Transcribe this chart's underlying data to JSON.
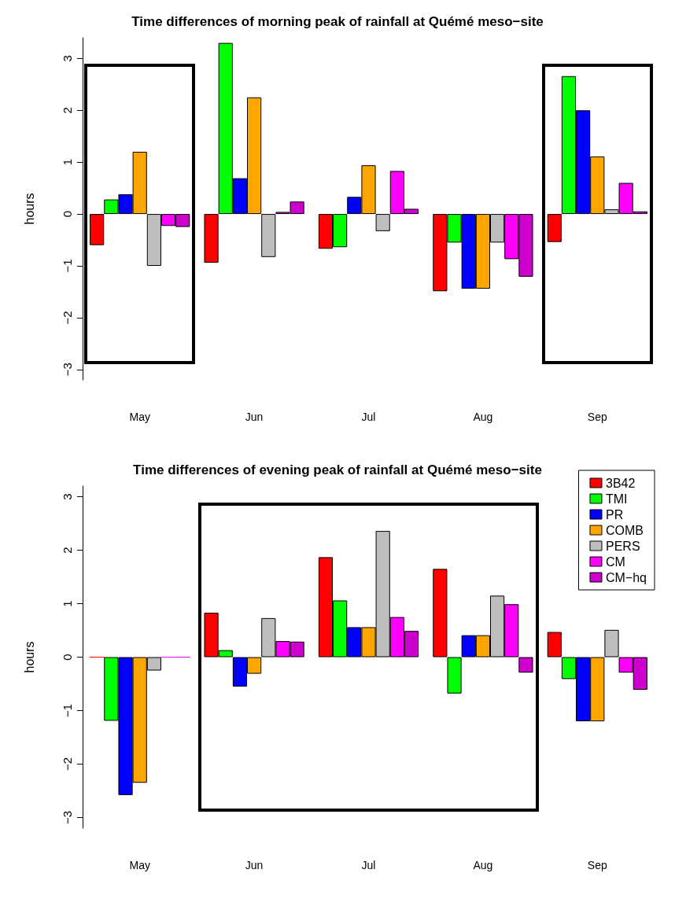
{
  "chart_data": [
    {
      "type": "bar",
      "title": "Time differences of morning peak of rainfall at Quémé meso−site",
      "ylabel": "hours",
      "categories": [
        "May",
        "Jun",
        "Jul",
        "Aug",
        "Sep"
      ],
      "ylim": [
        -3.2,
        3.4
      ],
      "yticks": [
        -3,
        -2,
        -1,
        0,
        1,
        2,
        3
      ],
      "legend": false,
      "series": [
        {
          "color": "#ff0000",
          "values": [
            -0.6,
            -0.94,
            -0.67,
            -1.49,
            -0.54
          ]
        },
        {
          "color": "#00ff00",
          "values": [
            0.28,
            3.3,
            -0.64,
            -0.55,
            2.66
          ]
        },
        {
          "color": "#0000ff",
          "values": [
            0.38,
            0.69,
            0.33,
            -1.44,
            2.0
          ]
        },
        {
          "color": "#ffa500",
          "values": [
            1.2,
            2.25,
            0.94,
            -1.44,
            1.11
          ]
        },
        {
          "color": "#bebebe",
          "values": [
            -1.0,
            -0.83,
            -0.33,
            -0.55,
            0.09
          ]
        },
        {
          "color": "#ff00ff",
          "values": [
            -0.23,
            0.04,
            0.83,
            -0.87,
            0.6
          ]
        },
        {
          "color": "#cd00cd",
          "values": [
            -0.25,
            0.24,
            0.1,
            -1.21,
            0.05
          ]
        }
      ]
    },
    {
      "type": "bar",
      "title": "Time differences of evening peak of rainfall at Quémé meso−site",
      "ylabel": "hours",
      "categories": [
        "May",
        "Jun",
        "Jul",
        "Aug",
        "Sep"
      ],
      "ylim": [
        -3.2,
        3.2
      ],
      "yticks": [
        -3,
        -2,
        -1,
        0,
        1,
        2,
        3
      ],
      "legend": "top right",
      "series": [
        {
          "name": "3B42",
          "color": "#ff0000",
          "values": [
            0,
            0.83,
            1.87,
            1.65,
            0.47
          ]
        },
        {
          "name": "TMI",
          "color": "#00ff00",
          "values": [
            -1.19,
            0.13,
            1.06,
            -0.68,
            -0.41
          ]
        },
        {
          "name": "PR",
          "color": "#0000ff",
          "values": [
            -2.58,
            -0.55,
            0.56,
            0.41,
            -1.2
          ]
        },
        {
          "name": "COMB",
          "color": "#ffa500",
          "values": [
            -2.35,
            -0.31,
            0.56,
            0.41,
            -1.2
          ]
        },
        {
          "name": "PERS",
          "color": "#bebebe",
          "values": [
            -0.25,
            0.73,
            2.36,
            1.15,
            0.51
          ]
        },
        {
          "name": "CM",
          "color": "#ff00ff",
          "values": [
            0,
            0.3,
            0.75,
            0.99,
            -0.29
          ]
        },
        {
          "name": "CM−hq",
          "color": "#cd00cd",
          "values": [
            0,
            0.29,
            0.49,
            -0.29,
            -0.61
          ]
        }
      ]
    }
  ]
}
